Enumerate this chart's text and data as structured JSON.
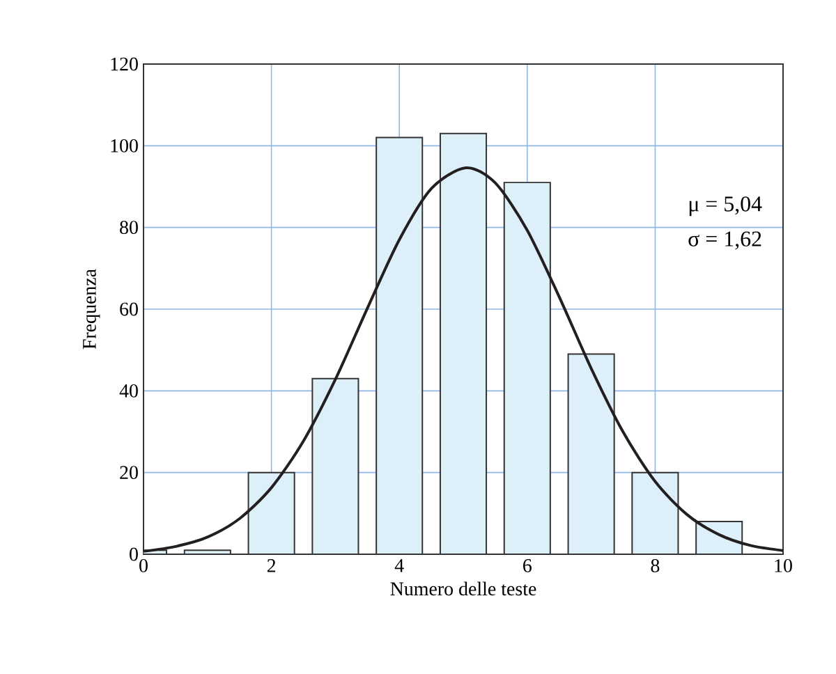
{
  "chart_data": {
    "type": "bar",
    "xlabel": "Numero delle teste",
    "ylabel": "Frequenza",
    "series": [
      {
        "color": "#ddf0fa",
        "x": [
          0,
          1,
          2,
          3,
          4,
          5,
          6,
          7,
          8,
          9
        ],
        "values": [
          1,
          1,
          20,
          43,
          102,
          103,
          91,
          49,
          20,
          8
        ]
      },
      {
        "type": "line",
        "color": "#231f20",
        "x": [
          0,
          0.5,
          1,
          1.5,
          2,
          2.5,
          3,
          3.5,
          4,
          4.5,
          5.04,
          5.5,
          6,
          6.5,
          7,
          7.5,
          8,
          8.5,
          9,
          9.5,
          10
        ],
        "values": [
          0.7,
          1.9,
          4.2,
          8.7,
          16.3,
          27.7,
          42.8,
          60.2,
          77,
          89.5,
          94.6,
          90.9,
          79.3,
          63,
          45.5,
          29.9,
          17.8,
          9.7,
          4.8,
          2.1,
          0.9
        ]
      }
    ],
    "xlim": [
      0,
      10
    ],
    "xticks": [
      0,
      2,
      4,
      6,
      8,
      10
    ],
    "ylim": [
      0,
      120
    ],
    "yticks": [
      0,
      20,
      40,
      60,
      80,
      100,
      120
    ],
    "grid": true,
    "marker": "none",
    "line_style": "solid",
    "annotations": [
      {
        "text": "μ = 5,04"
      },
      {
        "text": "σ = 1,62"
      }
    ]
  }
}
